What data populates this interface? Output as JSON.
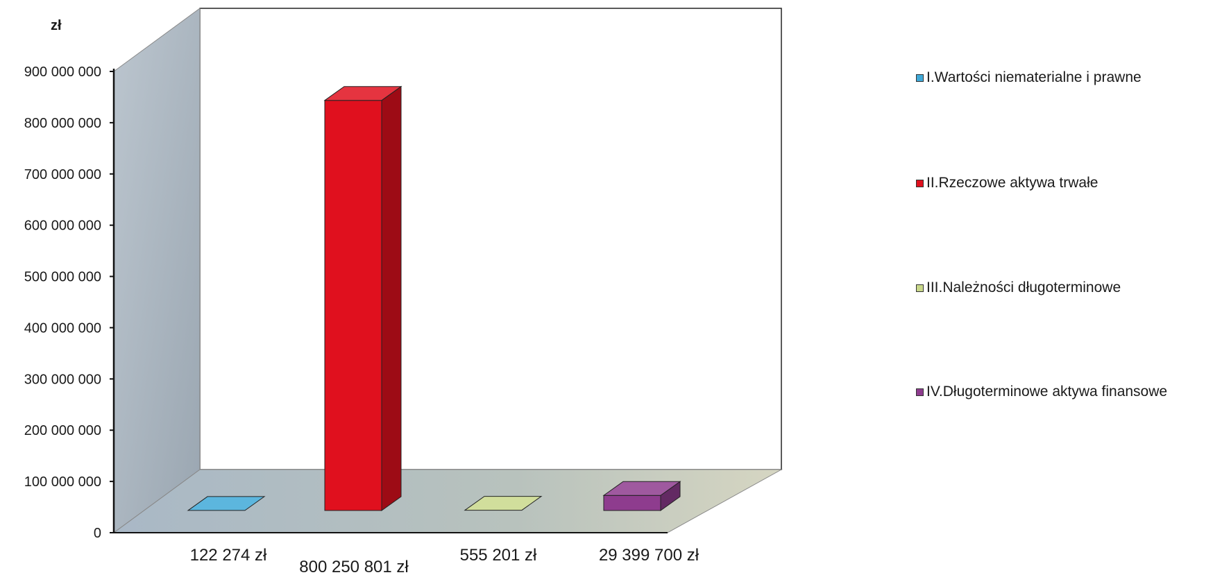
{
  "chart_data": {
    "type": "bar",
    "title": "",
    "unit_label": "zł",
    "ylim": [
      0,
      900000000
    ],
    "y_ticks": [
      {
        "value": 0,
        "label": "0"
      },
      {
        "value": 100000000,
        "label": "100 000 000"
      },
      {
        "value": 200000000,
        "label": "200 000 000"
      },
      {
        "value": 300000000,
        "label": "300 000 000"
      },
      {
        "value": 400000000,
        "label": "400 000 000"
      },
      {
        "value": 500000000,
        "label": "500 000 000"
      },
      {
        "value": 600000000,
        "label": "600 000 000"
      },
      {
        "value": 700000000,
        "label": "700 000 000"
      },
      {
        "value": 800000000,
        "label": "800 000 000"
      },
      {
        "value": 900000000,
        "label": "900 000 000"
      }
    ],
    "series": [
      {
        "name": "I.Wartości niematerialne i prawne",
        "value": 122274,
        "data_label": "122 274 zł",
        "color": "#3fa9d8"
      },
      {
        "name": "II.Rzeczowe aktywa trwałe",
        "value": 800250801,
        "data_label": "800 250 801 zł",
        "color": "#e0101e"
      },
      {
        "name": "III.Należności długoterminowe",
        "value": 555201,
        "data_label": "555 201 zł",
        "color": "#c9d88a"
      },
      {
        "name": "IV.Długoterminowe aktywa finansowe",
        "value": 29399700,
        "data_label": "29 399 700 zł",
        "color": "#8e3c8e"
      }
    ],
    "legend_position": "right",
    "grid": false
  }
}
